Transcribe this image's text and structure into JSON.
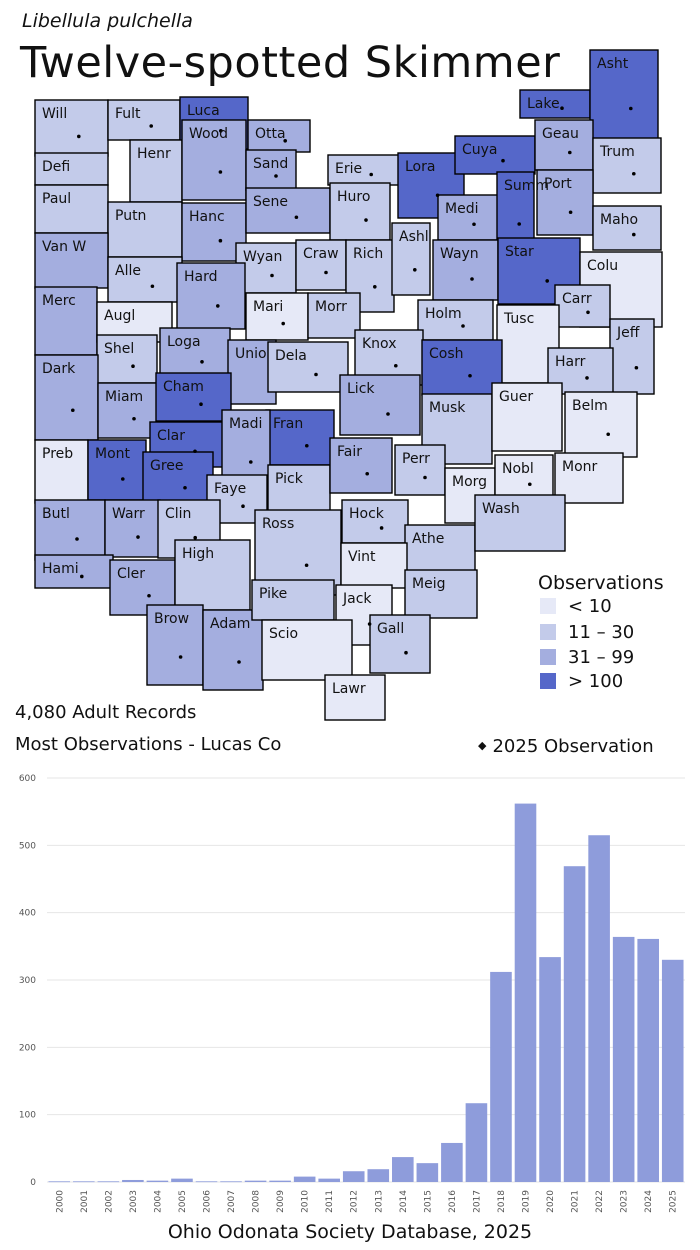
{
  "header": {
    "scientific_name": "Libellula pulchella",
    "common_name": "Twelve-spotted Skimmer"
  },
  "stats": {
    "records": "4,080 Adult Records",
    "most": "Most Observations - Lucas Co"
  },
  "legend": {
    "title": "Observations",
    "bins": [
      {
        "label": "< 10",
        "color": "#e6e9f7"
      },
      {
        "label": "11 – 30",
        "color": "#c3cbea"
      },
      {
        "label": "31 – 99",
        "color": "#a4aedf"
      },
      {
        "label": "> 100",
        "color": "#5567c9"
      }
    ],
    "dot_label": "2025  Observation"
  },
  "footer": {
    "source": "Ohio Odonata Society Database, 2025"
  },
  "map": {
    "counties": [
      {
        "name": "Will",
        "bin": 1,
        "dot": true
      },
      {
        "name": "Fult",
        "bin": 1,
        "dot": true
      },
      {
        "name": "Luca",
        "bin": 3,
        "dot": true
      },
      {
        "name": "Otta",
        "bin": 2,
        "dot": true
      },
      {
        "name": "Lake",
        "bin": 3,
        "dot": true
      },
      {
        "name": "Asht",
        "bin": 3,
        "dot": true
      },
      {
        "name": "Defi",
        "bin": 1,
        "dot": false
      },
      {
        "name": "Henr",
        "bin": 1,
        "dot": false
      },
      {
        "name": "Wood",
        "bin": 2,
        "dot": true
      },
      {
        "name": "Sand",
        "bin": 2,
        "dot": true
      },
      {
        "name": "Erie",
        "bin": 1,
        "dot": true
      },
      {
        "name": "Lora",
        "bin": 3,
        "dot": true
      },
      {
        "name": "Cuya",
        "bin": 3,
        "dot": true
      },
      {
        "name": "Geau",
        "bin": 2,
        "dot": true
      },
      {
        "name": "Trum",
        "bin": 1,
        "dot": true
      },
      {
        "name": "Paul",
        "bin": 1,
        "dot": false
      },
      {
        "name": "Putn",
        "bin": 1,
        "dot": false
      },
      {
        "name": "Hanc",
        "bin": 2,
        "dot": true
      },
      {
        "name": "Sene",
        "bin": 2,
        "dot": true
      },
      {
        "name": "Huro",
        "bin": 1,
        "dot": true
      },
      {
        "name": "Medi",
        "bin": 2,
        "dot": true
      },
      {
        "name": "Summ",
        "bin": 3,
        "dot": true
      },
      {
        "name": "Port",
        "bin": 2,
        "dot": true
      },
      {
        "name": "Maho",
        "bin": 1,
        "dot": true
      },
      {
        "name": "Van W",
        "bin": 2,
        "dot": false
      },
      {
        "name": "Alle",
        "bin": 1,
        "dot": true
      },
      {
        "name": "Wyan",
        "bin": 1,
        "dot": true
      },
      {
        "name": "Craw",
        "bin": 1,
        "dot": true
      },
      {
        "name": "Rich",
        "bin": 1,
        "dot": true
      },
      {
        "name": "Ashl",
        "bin": 1,
        "dot": true
      },
      {
        "name": "Wayn",
        "bin": 2,
        "dot": true
      },
      {
        "name": "Star",
        "bin": 3,
        "dot": true
      },
      {
        "name": "Colu",
        "bin": 0,
        "dot": false
      },
      {
        "name": "Merc",
        "bin": 2,
        "dot": false
      },
      {
        "name": "Augl",
        "bin": 0,
        "dot": false
      },
      {
        "name": "Hard",
        "bin": 2,
        "dot": true
      },
      {
        "name": "Mari",
        "bin": 0,
        "dot": true
      },
      {
        "name": "Morr",
        "bin": 1,
        "dot": false
      },
      {
        "name": "Holm",
        "bin": 1,
        "dot": true
      },
      {
        "name": "Carr",
        "bin": 1,
        "dot": true
      },
      {
        "name": "Tusc",
        "bin": 0,
        "dot": false
      },
      {
        "name": "Jeff",
        "bin": 1,
        "dot": true
      },
      {
        "name": "Shel",
        "bin": 1,
        "dot": true
      },
      {
        "name": "Loga",
        "bin": 2,
        "dot": true
      },
      {
        "name": "Unio",
        "bin": 2,
        "dot": false
      },
      {
        "name": "Dela",
        "bin": 1,
        "dot": true
      },
      {
        "name": "Knox",
        "bin": 1,
        "dot": true
      },
      {
        "name": "Cosh",
        "bin": 3,
        "dot": true
      },
      {
        "name": "Harr",
        "bin": 1,
        "dot": true
      },
      {
        "name": "Dark",
        "bin": 2,
        "dot": true
      },
      {
        "name": "Miam",
        "bin": 2,
        "dot": true
      },
      {
        "name": "Cham",
        "bin": 3,
        "dot": true
      },
      {
        "name": "Lick",
        "bin": 2,
        "dot": true
      },
      {
        "name": "Musk",
        "bin": 1,
        "dot": false
      },
      {
        "name": "Guer",
        "bin": 0,
        "dot": false
      },
      {
        "name": "Belm",
        "bin": 0,
        "dot": true
      },
      {
        "name": "Clar",
        "bin": 3,
        "dot": true
      },
      {
        "name": "Fran",
        "bin": 3,
        "dot": true
      },
      {
        "name": "Madi",
        "bin": 2,
        "dot": true
      },
      {
        "name": "Preb",
        "bin": 0,
        "dot": false
      },
      {
        "name": "Mont",
        "bin": 3,
        "dot": true
      },
      {
        "name": "Gree",
        "bin": 3,
        "dot": true
      },
      {
        "name": "Faye",
        "bin": 1,
        "dot": true
      },
      {
        "name": "Pick",
        "bin": 1,
        "dot": false
      },
      {
        "name": "Fair",
        "bin": 2,
        "dot": true
      },
      {
        "name": "Perr",
        "bin": 1,
        "dot": true
      },
      {
        "name": "Morg",
        "bin": 0,
        "dot": false
      },
      {
        "name": "Nobl",
        "bin": 0,
        "dot": true
      },
      {
        "name": "Monr",
        "bin": 0,
        "dot": false
      },
      {
        "name": "Butl",
        "bin": 2,
        "dot": true
      },
      {
        "name": "Warr",
        "bin": 2,
        "dot": true
      },
      {
        "name": "Clin",
        "bin": 1,
        "dot": true
      },
      {
        "name": "Ross",
        "bin": 1,
        "dot": true
      },
      {
        "name": "Hock",
        "bin": 1,
        "dot": true
      },
      {
        "name": "Athe",
        "bin": 1,
        "dot": false
      },
      {
        "name": "Wash",
        "bin": 1,
        "dot": false
      },
      {
        "name": "Hami",
        "bin": 2,
        "dot": true
      },
      {
        "name": "Cler",
        "bin": 2,
        "dot": true
      },
      {
        "name": "High",
        "bin": 1,
        "dot": false
      },
      {
        "name": "Vint",
        "bin": 0,
        "dot": false
      },
      {
        "name": "Brow",
        "bin": 2,
        "dot": true
      },
      {
        "name": "Adam",
        "bin": 2,
        "dot": true
      },
      {
        "name": "Pike",
        "bin": 1,
        "dot": false
      },
      {
        "name": "Jack",
        "bin": 0,
        "dot": true
      },
      {
        "name": "Meig",
        "bin": 1,
        "dot": false
      },
      {
        "name": "Gall",
        "bin": 1,
        "dot": true
      },
      {
        "name": "Scio",
        "bin": 0,
        "dot": false
      },
      {
        "name": "Lawr",
        "bin": 0,
        "dot": false
      }
    ]
  },
  "chart_data": {
    "type": "bar",
    "categories": [
      "2000",
      "2001",
      "2002",
      "2003",
      "2004",
      "2005",
      "2006",
      "2007",
      "2008",
      "2009",
      "2010",
      "2011",
      "2012",
      "2013",
      "2014",
      "2015",
      "2016",
      "2017",
      "2018",
      "2019",
      "2020",
      "2021",
      "2022",
      "2023",
      "2024",
      "2025"
    ],
    "values": [
      1,
      1,
      1,
      3,
      2,
      5,
      1,
      1,
      2,
      2,
      8,
      5,
      16,
      19,
      37,
      28,
      58,
      117,
      312,
      562,
      334,
      469,
      515,
      364,
      361,
      330
    ],
    "xlabel": "",
    "ylabel": "",
    "ylim": [
      0,
      600
    ],
    "yticks": [
      0,
      100,
      200,
      300,
      400,
      500,
      600
    ],
    "grid": true,
    "color": "#8e9cdb"
  }
}
